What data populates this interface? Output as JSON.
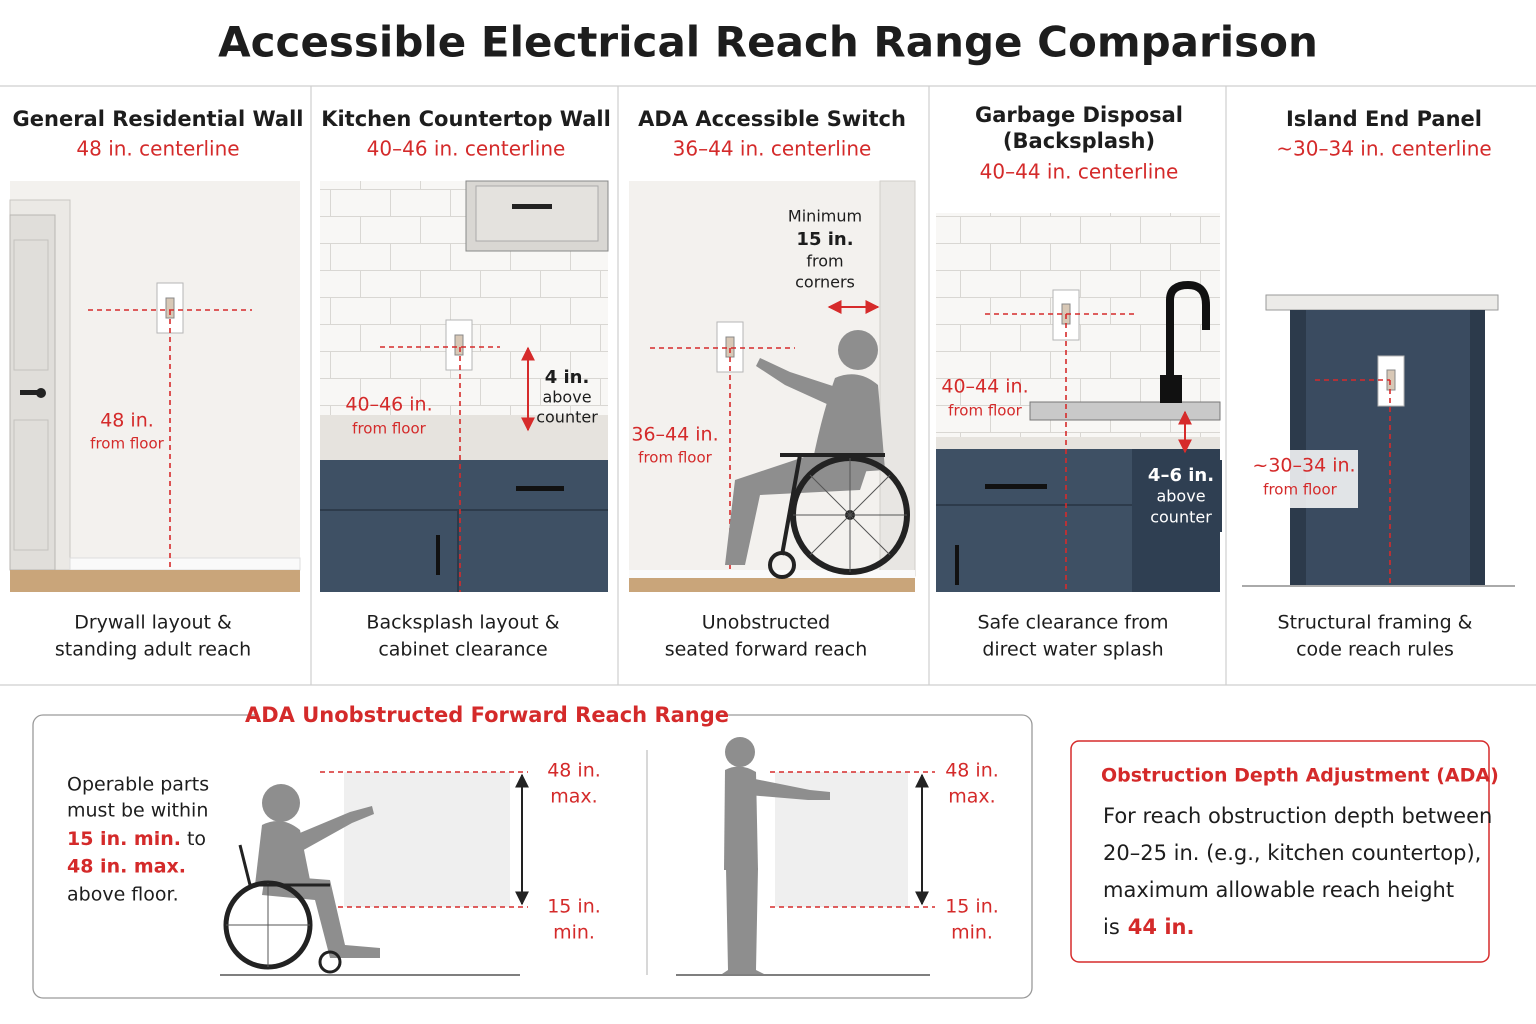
{
  "header": {
    "title": "Accessible Electrical Reach Range Comparison"
  },
  "panels": [
    {
      "title": [
        "General Residential Wall"
      ],
      "range": "48 in. centerline",
      "height_label": [
        "48 in.",
        "from floor"
      ],
      "caption": [
        "Drywall layout &",
        "standing adult reach"
      ]
    },
    {
      "title": [
        "Kitchen Countertop Wall"
      ],
      "range": "40–46 in. centerline",
      "height_label": [
        "40–46 in.",
        "from floor"
      ],
      "note": [
        "4 in.",
        "above",
        "counter"
      ],
      "caption": [
        "Backsplash layout &",
        "cabinet clearance"
      ]
    },
    {
      "title": [
        "ADA Accessible Switch"
      ],
      "range": "36–44 in. centerline",
      "height_label": [
        "36–44 in.",
        "from floor"
      ],
      "note": [
        "Minimum",
        "15 in.",
        "from",
        "corners"
      ],
      "caption": [
        "Unobstructed",
        "seated forward reach"
      ]
    },
    {
      "title": [
        "Garbage Disposal",
        "(Backsplash)"
      ],
      "range": "40–44 in. centerline",
      "height_label": [
        "40–44 in.",
        "from floor"
      ],
      "note": [
        "4–6 in.",
        "above",
        "counter"
      ],
      "caption": [
        "Safe clearance from",
        "direct water splash"
      ]
    },
    {
      "title": [
        "Island End Panel"
      ],
      "range": "~30–34 in. centerline",
      "height_label": [
        "~30–34 in.",
        "from floor"
      ],
      "caption": [
        "Structural framing &",
        "code reach rules"
      ]
    }
  ],
  "reach_range": {
    "title": "ADA Unobstructed Forward Reach Range",
    "text": {
      "line1": "Operable parts",
      "line2": "must be within",
      "min": "15 in. min.",
      "to": "to",
      "max": "48 in. max.",
      "end": "above floor."
    },
    "seated": {
      "top": [
        "48 in.",
        "max."
      ],
      "bottom": [
        "15 in.",
        "min."
      ]
    },
    "standing": {
      "top": [
        "48 in.",
        "max."
      ],
      "bottom": [
        "15 in.",
        "min."
      ]
    }
  },
  "obstruction": {
    "title": "Obstruction Depth Adjustment (ADA)",
    "lines": [
      "For reach obstruction depth between",
      "20–25 in. (e.g., kitchen countertop),",
      "maximum allowable reach height"
    ],
    "last": "is",
    "limit": "44 in."
  }
}
